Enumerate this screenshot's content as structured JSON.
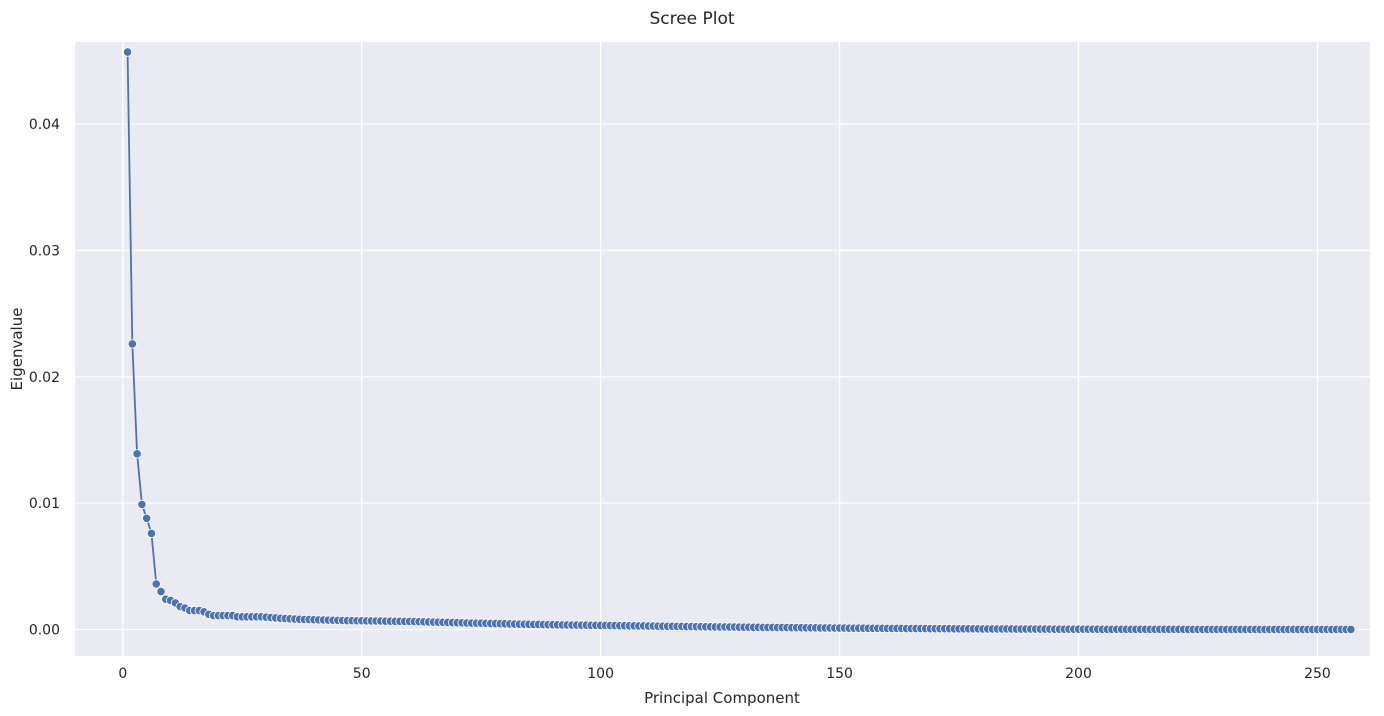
{
  "chart_data": {
    "type": "line",
    "title": "Scree Plot",
    "xlabel": "Principal Component",
    "ylabel": "Eigenvalue",
    "xlim": [
      -10,
      261
    ],
    "ylim": [
      -0.0021,
      0.0465
    ],
    "xticks": [
      0,
      50,
      100,
      150,
      200,
      250
    ],
    "xtick_labels": [
      "0",
      "50",
      "100",
      "150",
      "200",
      "250"
    ],
    "yticks": [
      0.0,
      0.01,
      0.02,
      0.03,
      0.04
    ],
    "ytick_labels": [
      "0.00",
      "0.01",
      "0.02",
      "0.03",
      "0.04"
    ],
    "grid": true,
    "background": "#eaeaf2",
    "grid_color": "#ffffff",
    "line_color": "#4c72b0",
    "series": [
      {
        "x_start": 1,
        "x_step": 1,
        "y": [
          0.0457,
          0.0226,
          0.0139,
          0.0099,
          0.0088,
          0.0076,
          0.0036,
          0.003,
          0.0024,
          0.0023,
          0.0021,
          0.0018,
          0.0017,
          0.0015,
          0.0015,
          0.0015,
          0.0014,
          0.0012,
          0.0011,
          0.0011,
          0.0011,
          0.0011,
          0.0011,
          0.001,
          0.001,
          0.001,
          0.001,
          0.001,
          0.001,
          0.00097,
          0.00094,
          0.00091,
          0.00088,
          0.00086,
          0.00084,
          0.00082,
          0.0008,
          0.00079,
          0.00078,
          0.00077,
          0.00076,
          0.00075,
          0.00074,
          0.00073,
          0.00072,
          0.00071,
          0.0007,
          0.0007,
          0.00069,
          0.00069,
          0.00068,
          0.00068,
          0.00067,
          0.00067,
          0.00066,
          0.00066,
          0.00065,
          0.00065,
          0.00064,
          0.00064,
          0.00063,
          0.00062,
          0.00061,
          0.0006,
          0.00059,
          0.00058,
          0.00057,
          0.00056,
          0.00055,
          0.00054,
          0.00053,
          0.00052,
          0.00051,
          0.0005,
          0.0005,
          0.00049,
          0.00048,
          0.00047,
          0.00046,
          0.00045,
          0.00044,
          0.00043,
          0.00042,
          0.00042,
          0.00041,
          0.0004,
          0.0004,
          0.00039,
          0.00038,
          0.00038,
          0.00037,
          0.00036,
          0.00036,
          0.00035,
          0.00035,
          0.00034,
          0.00034,
          0.00033,
          0.00033,
          0.00032,
          0.00032,
          0.00031,
          0.00031,
          0.0003,
          0.0003,
          0.00029,
          0.00029,
          0.00028,
          0.00028,
          0.00027,
          0.00027,
          0.00026,
          0.00026,
          0.00025,
          0.00025,
          0.00024,
          0.00024,
          0.00023,
          0.00023,
          0.00022,
          0.00022,
          0.00021,
          0.00021,
          0.0002,
          0.0002,
          0.0002,
          0.00019,
          0.00019,
          0.00018,
          0.00018,
          0.00018,
          0.00017,
          0.00017,
          0.00016,
          0.00016,
          0.00016,
          0.00015,
          0.00015,
          0.00015,
          0.00014,
          0.00014,
          0.00014,
          0.00013,
          0.00013,
          0.00013,
          0.00012,
          0.00012,
          0.00012,
          0.00011,
          0.00011,
          0.00011,
          0.0001,
          0.0001,
          0.0001,
          0.0001,
          9e-05,
          9e-05,
          9e-05,
          9e-05,
          8e-05,
          8e-05,
          8e-05,
          8e-05,
          7e-05,
          7e-05,
          7e-05,
          7e-05,
          7e-05,
          6e-05,
          6e-05,
          6e-05,
          6e-05,
          6e-05,
          5e-05,
          5e-05,
          5e-05,
          5e-05,
          5e-05,
          5e-05,
          4e-05,
          4e-05,
          4e-05,
          4e-05,
          4e-05,
          4e-05,
          4e-05,
          3e-05,
          3e-05,
          3e-05,
          3e-05,
          3e-05,
          3e-05,
          3e-05,
          3e-05,
          2e-05,
          2e-05,
          2e-05,
          2e-05,
          2e-05,
          2e-05,
          2e-05,
          2e-05,
          2e-05,
          2e-05,
          1e-05,
          1e-05,
          1e-05,
          1e-05,
          1e-05,
          1e-05,
          1e-05,
          1e-05,
          1e-05,
          1e-05,
          1e-05,
          1e-05,
          1e-05,
          1e-05,
          1e-05,
          1e-05,
          1e-05,
          1e-05,
          0.0,
          0.0,
          0.0,
          0.0,
          0.0,
          0.0,
          0.0,
          0.0,
          0.0,
          0.0,
          0.0,
          0.0,
          0.0,
          0.0,
          0.0,
          0.0,
          0.0,
          0.0,
          0.0,
          0.0,
          0.0,
          0.0,
          0.0,
          0.0,
          0.0,
          0.0,
          0.0,
          0.0,
          0.0,
          0.0,
          0.0,
          0.0,
          0.0,
          0.0,
          0.0
        ]
      }
    ]
  }
}
